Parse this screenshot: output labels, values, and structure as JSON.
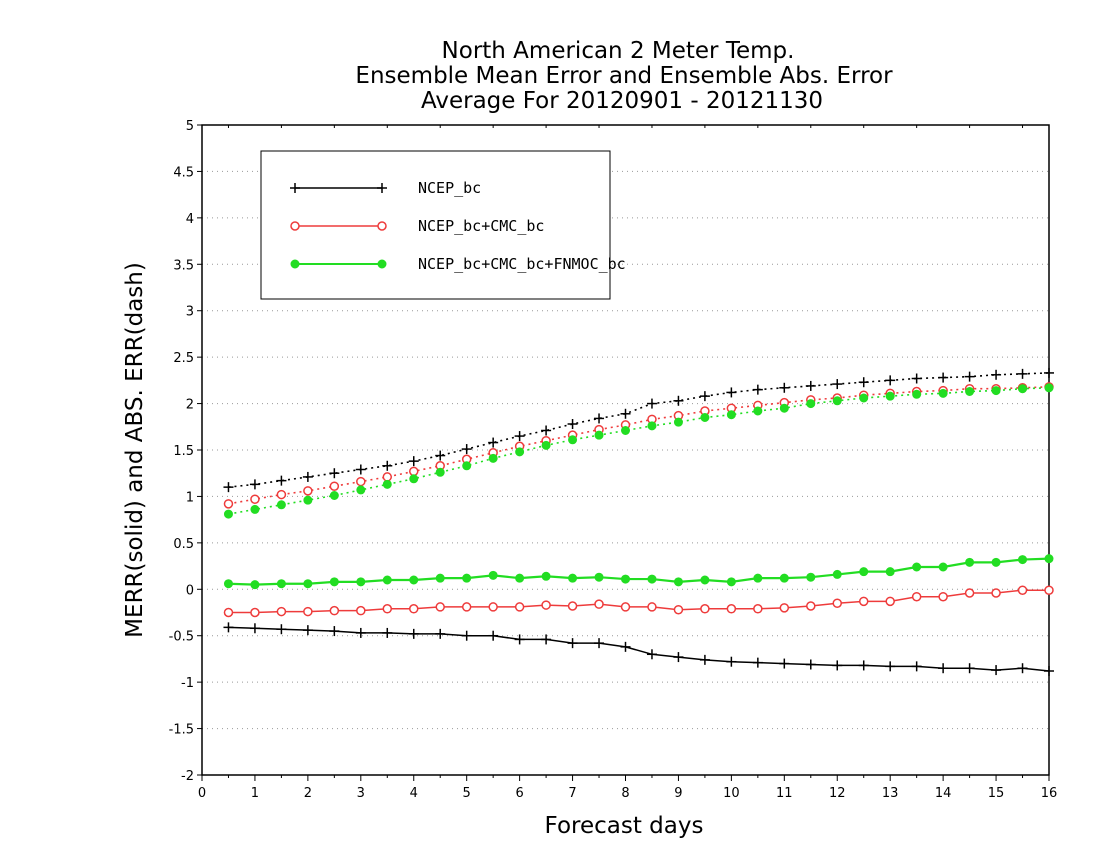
{
  "chart_data": {
    "type": "line",
    "title": [
      "North American 2 Meter Temp.",
      "Ensemble Mean Error and Ensemble Abs. Error",
      "Average For 20120901 - 20121130"
    ],
    "xlabel": "Forecast days",
    "ylabel": "MERR(solid) and ABS. ERR(dash)",
    "xlim": [
      0,
      16
    ],
    "ylim": [
      -2,
      5
    ],
    "xticks": [
      "0",
      "1",
      "2",
      "3",
      "4",
      "5",
      "6",
      "7",
      "8",
      "9",
      "10",
      "11",
      "12",
      "13",
      "14",
      "15",
      "16"
    ],
    "yticks": [
      "-2",
      "-1.5",
      "-1",
      "-0.5",
      "0",
      "0.5",
      "1",
      "1.5",
      "2",
      "2.5",
      "3",
      "3.5",
      "4",
      "4.5",
      "5"
    ],
    "grid": "horizontal dotted",
    "legend_position": "top-left",
    "x": [
      0.5,
      1,
      1.5,
      2,
      2.5,
      3,
      3.5,
      4,
      4.5,
      5,
      5.5,
      6,
      6.5,
      7,
      7.5,
      8,
      8.5,
      9,
      9.5,
      10,
      10.5,
      11,
      11.5,
      12,
      12.5,
      13,
      13.5,
      14,
      14.5,
      15,
      15.5,
      16
    ],
    "series": [
      {
        "name": "NCEP_bc",
        "color": "#000000",
        "marker": "plus",
        "merr": [
          -0.41,
          -0.42,
          -0.43,
          -0.44,
          -0.45,
          -0.47,
          -0.47,
          -0.48,
          -0.48,
          -0.5,
          -0.5,
          -0.54,
          -0.54,
          -0.58,
          -0.58,
          -0.62,
          -0.7,
          -0.73,
          -0.76,
          -0.78,
          -0.79,
          -0.8,
          -0.81,
          -0.82,
          -0.82,
          -0.83,
          -0.83,
          -0.85,
          -0.85,
          -0.87,
          -0.85,
          -0.88
        ],
        "abserr": [
          1.1,
          1.13,
          1.17,
          1.21,
          1.25,
          1.29,
          1.33,
          1.38,
          1.44,
          1.51,
          1.58,
          1.65,
          1.71,
          1.78,
          1.84,
          1.89,
          2.0,
          2.03,
          2.08,
          2.12,
          2.15,
          2.17,
          2.19,
          2.21,
          2.23,
          2.25,
          2.27,
          2.28,
          2.29,
          2.31,
          2.32,
          2.33
        ]
      },
      {
        "name": "NCEP_bc+CMC_bc",
        "color": "#ee3b3b",
        "marker": "open-circle",
        "merr": [
          -0.25,
          -0.25,
          -0.24,
          -0.24,
          -0.23,
          -0.23,
          -0.21,
          -0.21,
          -0.19,
          -0.19,
          -0.19,
          -0.19,
          -0.17,
          -0.18,
          -0.16,
          -0.19,
          -0.19,
          -0.22,
          -0.21,
          -0.21,
          -0.21,
          -0.2,
          -0.18,
          -0.15,
          -0.13,
          -0.13,
          -0.08,
          -0.08,
          -0.04,
          -0.04,
          -0.01,
          -0.01
        ],
        "abserr": [
          0.92,
          0.97,
          1.02,
          1.06,
          1.11,
          1.16,
          1.21,
          1.27,
          1.33,
          1.4,
          1.47,
          1.54,
          1.6,
          1.66,
          1.72,
          1.77,
          1.83,
          1.87,
          1.92,
          1.95,
          1.98,
          2.01,
          2.04,
          2.06,
          2.09,
          2.11,
          2.13,
          2.14,
          2.16,
          2.16,
          2.17,
          2.18
        ]
      },
      {
        "name": "NCEP_bc+CMC_bc+FNMOC_bc",
        "color": "#22dd22",
        "marker": "filled-circle",
        "merr": [
          0.06,
          0.05,
          0.06,
          0.06,
          0.08,
          0.08,
          0.1,
          0.1,
          0.12,
          0.12,
          0.15,
          0.12,
          0.14,
          0.12,
          0.13,
          0.11,
          0.11,
          0.08,
          0.1,
          0.08,
          0.12,
          0.12,
          0.13,
          0.16,
          0.19,
          0.19,
          0.24,
          0.24,
          0.29,
          0.29,
          0.32,
          0.33
        ],
        "abserr": [
          0.81,
          0.86,
          0.91,
          0.96,
          1.01,
          1.07,
          1.13,
          1.19,
          1.26,
          1.33,
          1.41,
          1.48,
          1.55,
          1.61,
          1.66,
          1.71,
          1.76,
          1.8,
          1.85,
          1.88,
          1.92,
          1.95,
          2.0,
          2.03,
          2.06,
          2.08,
          2.1,
          2.11,
          2.13,
          2.14,
          2.16,
          2.17
        ]
      }
    ]
  }
}
